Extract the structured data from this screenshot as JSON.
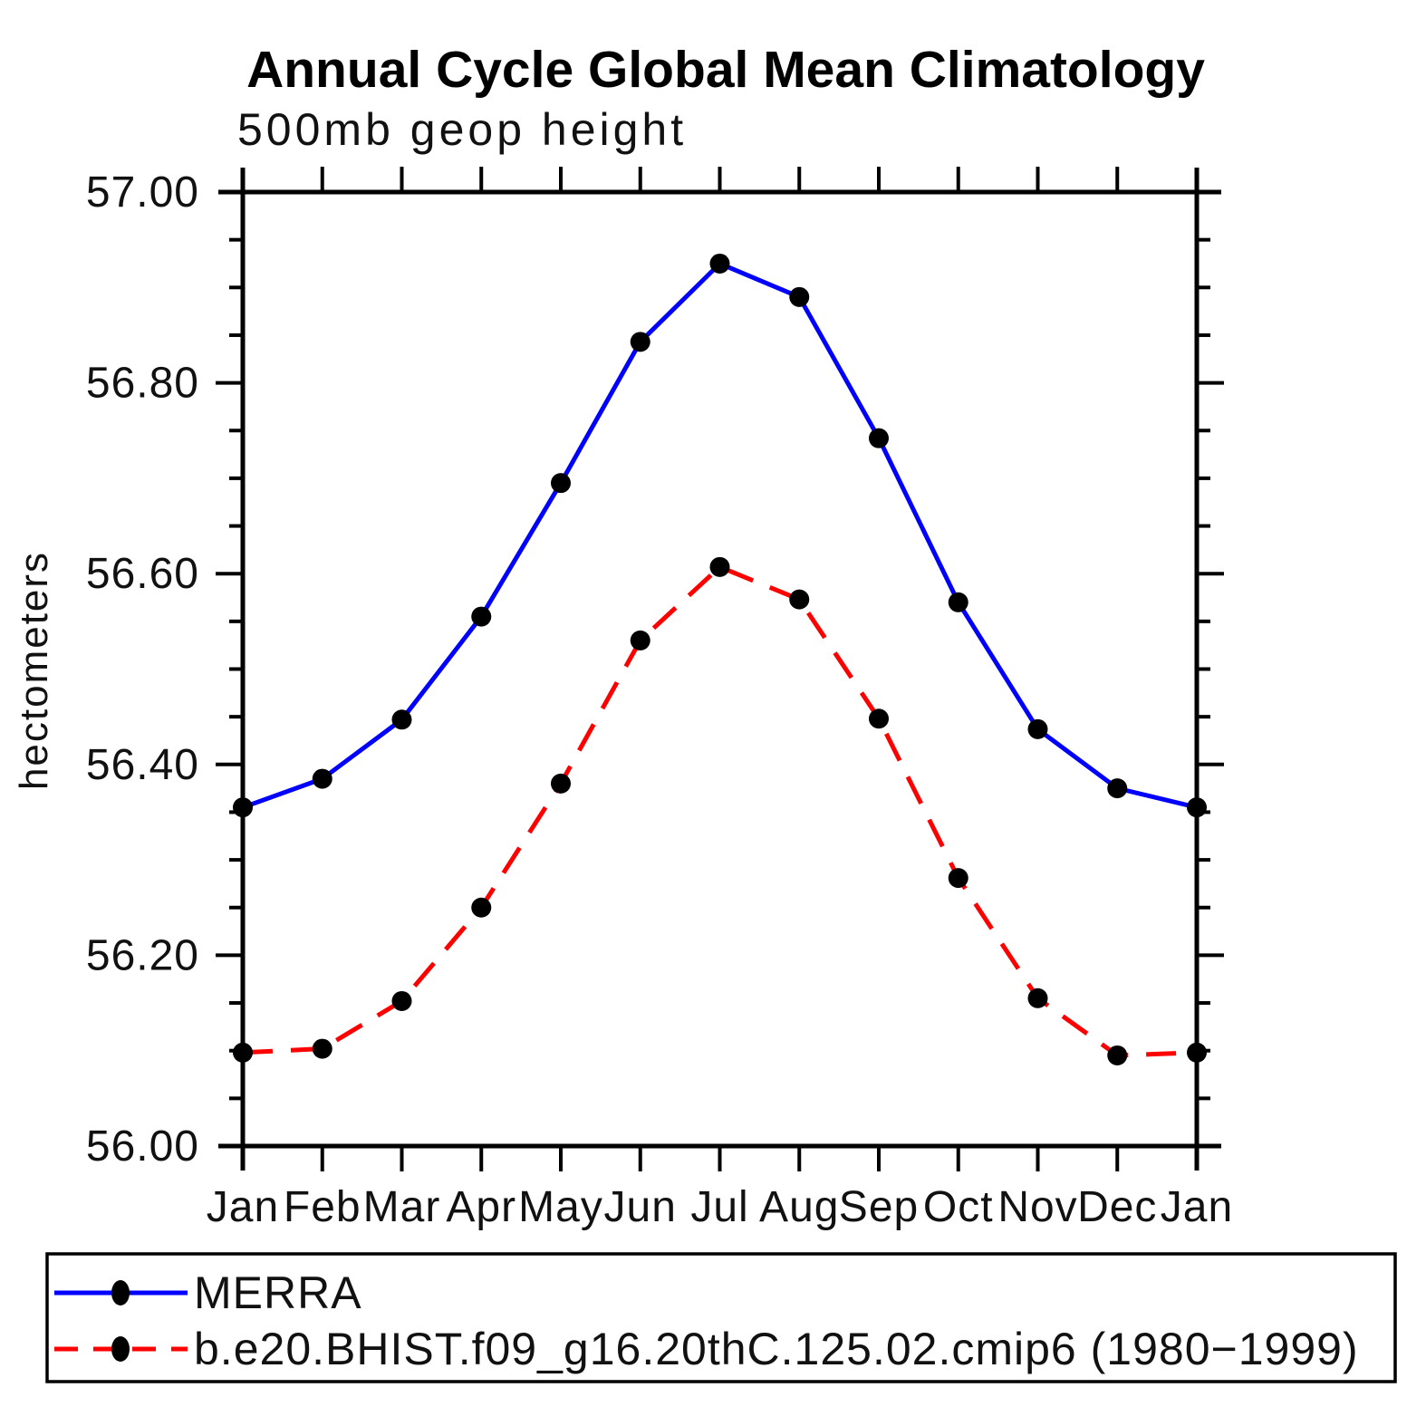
{
  "page": {
    "background": "#ffffff"
  },
  "chart_data": {
    "type": "line",
    "title": "Annual Cycle Global Mean Climatology",
    "subtitle": "500mb geop height",
    "ylabel": "hectometers",
    "xlabel": "",
    "x_tick_labels": [
      "Jan",
      "Feb",
      "Mar",
      "Apr",
      "May",
      "Jun",
      "Jul",
      "Aug",
      "Sep",
      "Oct",
      "Nov",
      "Dec",
      "Jan"
    ],
    "ylim": [
      56.0,
      57.0
    ],
    "y_major_ticks": [
      56.0,
      56.2,
      56.4,
      56.6,
      56.8,
      57.0
    ],
    "y_tick_labels": [
      "56.00",
      "56.20",
      "56.40",
      "56.60",
      "56.80",
      "57.00"
    ],
    "y_minor_step": 0.05,
    "grid": false,
    "legend_position": "bottom",
    "colors": {
      "axis": "#000000",
      "marker": "#000000",
      "series1": "#0000ff",
      "series2": "#ff0000"
    },
    "series": [
      {
        "name": "MERRA",
        "color": "#0000ff",
        "line_style": "solid",
        "marker": "circle",
        "marker_color": "#000000",
        "values": [
          56.355,
          56.385,
          56.447,
          56.555,
          56.695,
          56.843,
          56.925,
          56.89,
          56.742,
          56.57,
          56.437,
          56.375,
          56.355
        ]
      },
      {
        "name": "b.e20.BHIST.f09_g16.20thC.125.02.cmip6 (1980−1999)",
        "color": "#ff0000",
        "line_style": "dashed",
        "marker": "circle",
        "marker_color": "#000000",
        "values": [
          56.098,
          56.102,
          56.152,
          56.25,
          56.38,
          56.53,
          56.607,
          56.573,
          56.448,
          56.281,
          56.155,
          56.095,
          56.098
        ]
      }
    ]
  }
}
